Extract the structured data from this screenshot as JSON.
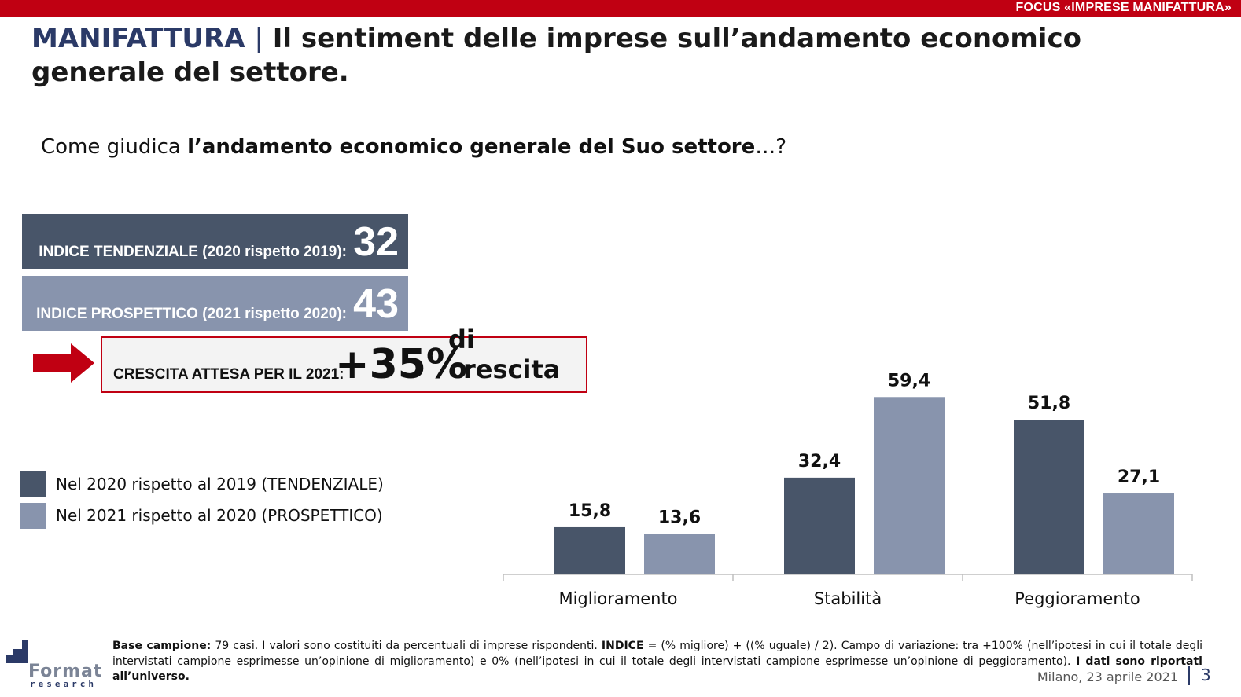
{
  "header": {
    "focus_label": "FOCUS «IMPRESE MANIFATTURA»",
    "brand": "MANIFATTURA",
    "separator": "|",
    "title": "Il sentiment delle imprese sull’andamento economico generale del settore."
  },
  "question": {
    "prefix": "Come giudica ",
    "bold": "l’andamento economico generale del Suo settore",
    "suffix": "…?"
  },
  "indices": {
    "tendenziale_label": "INDICE TENDENZIALE (2020 rispetto 2019):",
    "tendenziale_value": "32",
    "prospettico_label": "INDICE PROSPETTICO (2021 rispetto 2020):",
    "prospettico_value": "43"
  },
  "growth": {
    "label": "CRESCITA ATTESA PER IL 2021:",
    "value": "+35%",
    "suffix": "di crescita"
  },
  "colors": {
    "accent_red": "#c00012",
    "series_dark": "#485569",
    "series_light": "#8894ad",
    "brand_blue": "#2b3a67"
  },
  "chart_data": {
    "type": "bar",
    "categories": [
      "Miglioramento",
      "Stabilità",
      "Peggioramento"
    ],
    "series": [
      {
        "name": "Nel 2020 rispetto al 2019 (TENDENZIALE)",
        "values": [
          15.8,
          32.4,
          51.8
        ],
        "labels": [
          "15,8",
          "32,4",
          "51,8"
        ],
        "color": "#485569"
      },
      {
        "name": "Nel 2021 rispetto al 2020 (PROSPETTICO)",
        "values": [
          13.6,
          59.4,
          27.1
        ],
        "labels": [
          "13,6",
          "59,4",
          "27,1"
        ],
        "color": "#8894ad"
      }
    ],
    "ylim": [
      0,
      70
    ],
    "grid": false,
    "legend_position": "left",
    "title": "",
    "xlabel": "",
    "ylabel": ""
  },
  "footer": {
    "base_label": "Base campione:",
    "base_text_1": " 79 casi. I valori sono costituiti da percentuali di imprese rispondenti. ",
    "indice_label": "INDICE",
    "base_text_2": " = (% migliore) + ((% uguale) / 2). Campo di variazione: tra +100% (nell’ipotesi in cui il totale degli intervistati campione esprimesse un’opinione di miglioramento) e 0% (nell’ipotesi in cui il totale degli intervistati campione esprimesse un’opinione di peggioramento). ",
    "bold_end": "I dati sono riportati all’universo.",
    "date": "Milano, 23 aprile 2021",
    "page": "3",
    "logo_word": "Format",
    "logo_sub": "research"
  }
}
